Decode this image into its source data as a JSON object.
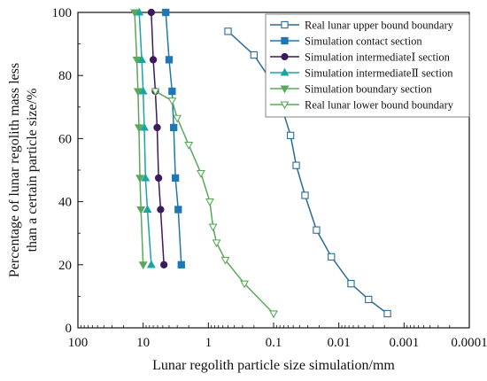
{
  "chart_data": {
    "type": "line",
    "title": "",
    "xlabel": "Lunar regolith particle size simulation/mm",
    "ylabel_line1": "Percentage of lunar regolith mass less",
    "ylabel_line2": "than a certain particle size/%",
    "x_scale": "log-reversed",
    "xlim": [
      100,
      0.0001
    ],
    "ylim": [
      0,
      100
    ],
    "x_tick_values": [
      100,
      10,
      1,
      0.1,
      0.01,
      0.001,
      0.0001
    ],
    "x_tick_labels": [
      "100",
      "10",
      "1",
      "0.1",
      "0.01",
      "0.001",
      "0.0001"
    ],
    "y_tick_values": [
      0,
      20,
      40,
      60,
      80,
      100
    ],
    "y_tick_labels": [
      "0",
      "20",
      "40",
      "60",
      "80",
      "100"
    ],
    "grid": false,
    "legend_position": "top-right",
    "series": [
      {
        "name": "Real lunar upper bound boundary",
        "color": "#2b6b95",
        "marker": "square",
        "filled": false,
        "points": [
          [
            0.5,
            94
          ],
          [
            0.2,
            86.5
          ],
          [
            0.11,
            78.5
          ],
          [
            0.075,
            70
          ],
          [
            0.055,
            61
          ],
          [
            0.045,
            51.5
          ],
          [
            0.033,
            42
          ],
          [
            0.022,
            31
          ],
          [
            0.013,
            22.5
          ],
          [
            0.0065,
            14
          ],
          [
            0.0035,
            9
          ],
          [
            0.0018,
            4.5
          ]
        ]
      },
      {
        "name": "Simulation contact section",
        "color": "#1f77b4",
        "marker": "square",
        "filled": true,
        "points": [
          [
            4.5,
            100
          ],
          [
            4.0,
            85
          ],
          [
            3.6,
            75
          ],
          [
            3.4,
            63.5
          ],
          [
            3.2,
            47.5
          ],
          [
            2.9,
            37.5
          ],
          [
            2.6,
            20
          ]
        ]
      },
      {
        "name": "Simulation intermediateⅠ section",
        "color": "#3b1a5e",
        "marker": "circle",
        "filled": true,
        "points": [
          [
            7.5,
            100
          ],
          [
            7.0,
            85
          ],
          [
            6.5,
            75
          ],
          [
            6.1,
            63.5
          ],
          [
            5.8,
            47.5
          ],
          [
            5.4,
            37.5
          ],
          [
            4.8,
            20
          ]
        ]
      },
      {
        "name": "Simulation intermediateⅡ section",
        "color": "#1aa5a5",
        "marker": "triangle-up",
        "filled": true,
        "points": [
          [
            11.5,
            100
          ],
          [
            10.5,
            85
          ],
          [
            10,
            75
          ],
          [
            9.6,
            63.5
          ],
          [
            9.2,
            47.5
          ],
          [
            8.6,
            37.5
          ],
          [
            7.5,
            20
          ]
        ]
      },
      {
        "name": "Simulation boundary section",
        "color": "#5aa85a",
        "marker": "triangle-down",
        "filled": true,
        "points": [
          [
            13.5,
            100
          ],
          [
            12.5,
            85
          ],
          [
            12,
            75
          ],
          [
            11.6,
            63.5
          ],
          [
            11.2,
            47.5
          ],
          [
            10.8,
            37.5
          ],
          [
            10,
            20
          ]
        ]
      },
      {
        "name": "Real lunar lower bound boundary",
        "color": "#5aa85a",
        "marker": "triangle-down",
        "filled": false,
        "points": [
          [
            6.5,
            75
          ],
          [
            3.6,
            72
          ],
          [
            3.0,
            66.5
          ],
          [
            2.0,
            58
          ],
          [
            1.3,
            49
          ],
          [
            0.95,
            40
          ],
          [
            0.85,
            32
          ],
          [
            0.75,
            27
          ],
          [
            0.55,
            21.5
          ],
          [
            0.28,
            14
          ],
          [
            0.1,
            4.5
          ]
        ]
      }
    ]
  }
}
